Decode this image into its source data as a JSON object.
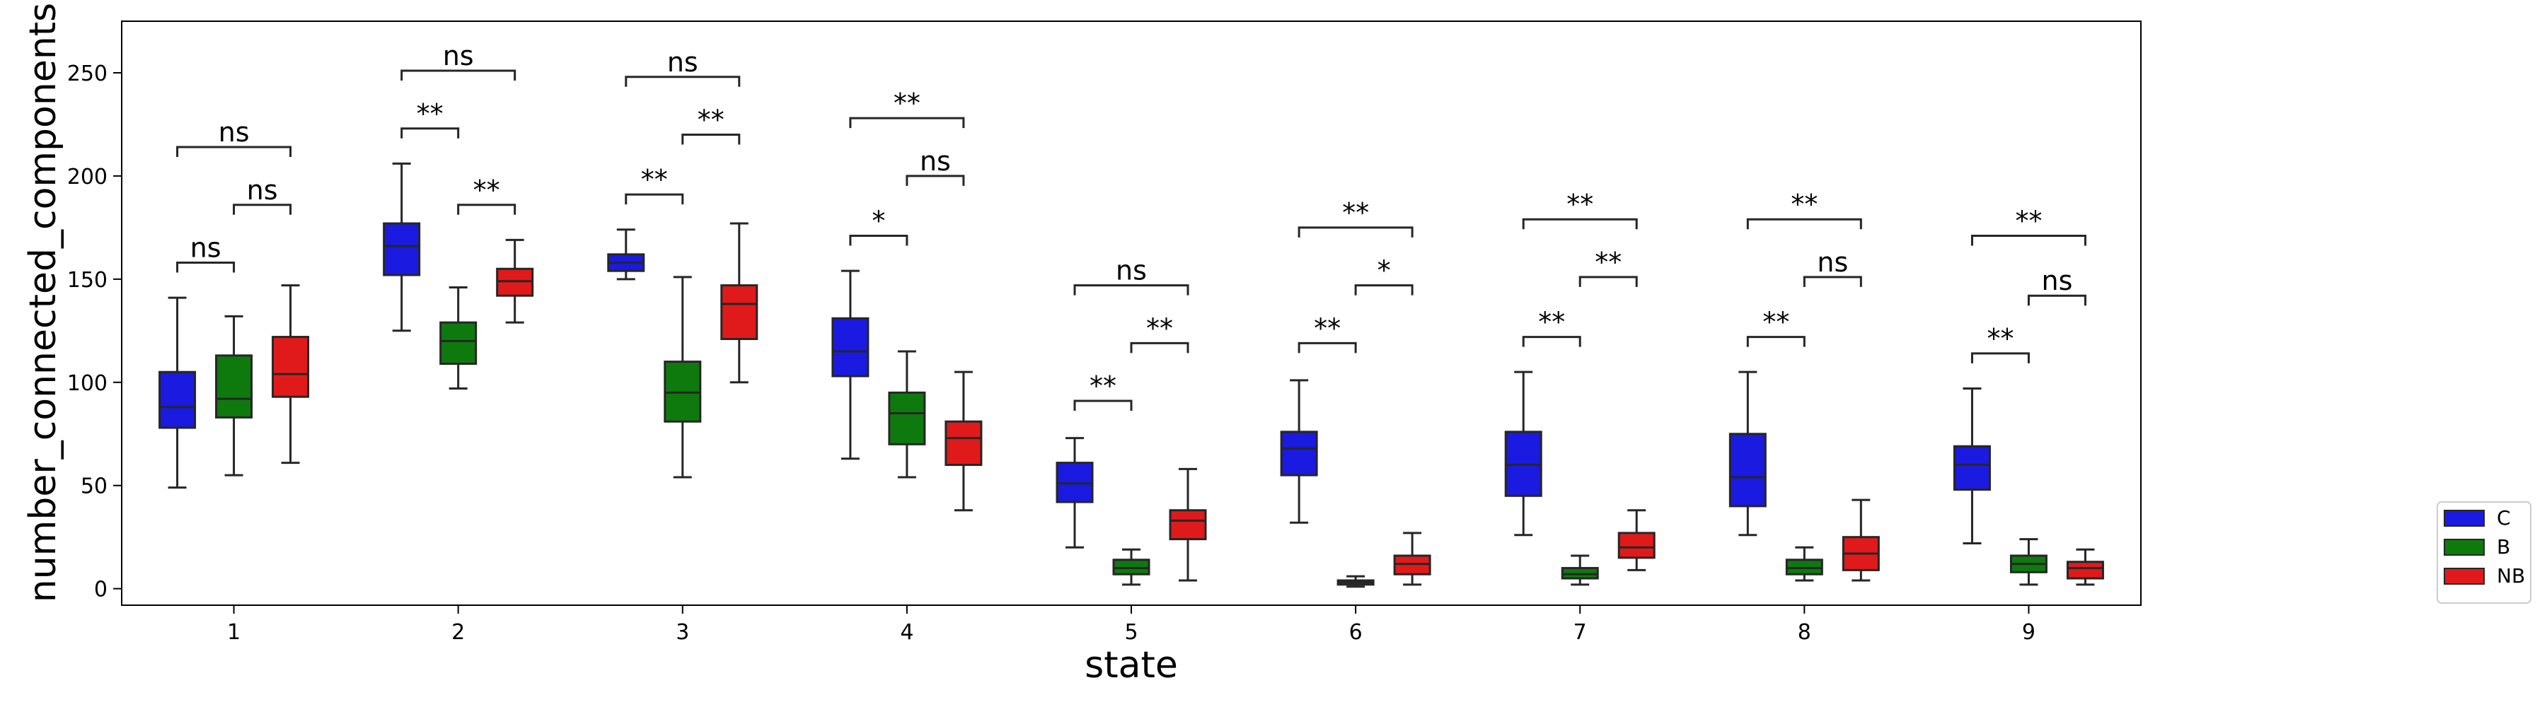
{
  "chart_data": {
    "type": "boxplot",
    "xlabel": "state",
    "ylabel": "number_connected_components",
    "ylim": [
      -8,
      275
    ],
    "yticks": [
      0,
      50,
      100,
      150,
      200,
      250
    ],
    "categories": [
      "1",
      "2",
      "3",
      "4",
      "5",
      "6",
      "7",
      "8",
      "9"
    ],
    "legend_placement": "outside-right-bottom",
    "grid": false,
    "series": [
      {
        "name": "C",
        "color": "#1a1ae0",
        "boxes": [
          {
            "whislo": 49,
            "q1": 78,
            "med": 88,
            "q3": 105,
            "whishi": 141
          },
          {
            "whislo": 125,
            "q1": 152,
            "med": 166,
            "q3": 177,
            "whishi": 206
          },
          {
            "whislo": 150,
            "q1": 154,
            "med": 158,
            "q3": 162,
            "whishi": 174
          },
          {
            "whislo": 63,
            "q1": 103,
            "med": 115,
            "q3": 131,
            "whishi": 154
          },
          {
            "whislo": 20,
            "q1": 42,
            "med": 51,
            "q3": 61,
            "whishi": 73
          },
          {
            "whislo": 32,
            "q1": 55,
            "med": 68,
            "q3": 76,
            "whishi": 101
          },
          {
            "whislo": 26,
            "q1": 45,
            "med": 60,
            "q3": 76,
            "whishi": 105
          },
          {
            "whislo": 26,
            "q1": 40,
            "med": 54,
            "q3": 75,
            "whishi": 105
          },
          {
            "whislo": 22,
            "q1": 48,
            "med": 60,
            "q3": 69,
            "whishi": 97
          }
        ]
      },
      {
        "name": "B",
        "color": "#0e7a0e",
        "boxes": [
          {
            "whislo": 55,
            "q1": 83,
            "med": 92,
            "q3": 113,
            "whishi": 132
          },
          {
            "whislo": 97,
            "q1": 109,
            "med": 120,
            "q3": 129,
            "whishi": 146
          },
          {
            "whislo": 54,
            "q1": 81,
            "med": 95,
            "q3": 110,
            "whishi": 151
          },
          {
            "whislo": 54,
            "q1": 70,
            "med": 85,
            "q3": 95,
            "whishi": 115
          },
          {
            "whislo": 2,
            "q1": 7,
            "med": 10,
            "q3": 14,
            "whishi": 19
          },
          {
            "whislo": 1,
            "q1": 2,
            "med": 3,
            "q3": 4,
            "whishi": 6
          },
          {
            "whislo": 2,
            "q1": 5,
            "med": 7,
            "q3": 10,
            "whishi": 16
          },
          {
            "whislo": 4,
            "q1": 7,
            "med": 10,
            "q3": 14,
            "whishi": 20
          },
          {
            "whislo": 2,
            "q1": 8,
            "med": 12,
            "q3": 16,
            "whishi": 24
          }
        ]
      },
      {
        "name": "NB",
        "color": "#e01a1a",
        "boxes": [
          {
            "whislo": 61,
            "q1": 93,
            "med": 104,
            "q3": 122,
            "whishi": 147
          },
          {
            "whislo": 129,
            "q1": 142,
            "med": 149,
            "q3": 155,
            "whishi": 169
          },
          {
            "whislo": 100,
            "q1": 121,
            "med": 138,
            "q3": 147,
            "whishi": 177
          },
          {
            "whislo": 38,
            "q1": 60,
            "med": 73,
            "q3": 81,
            "whishi": 105
          },
          {
            "whislo": 4,
            "q1": 24,
            "med": 33,
            "q3": 38,
            "whishi": 58
          },
          {
            "whislo": 2,
            "q1": 7,
            "med": 12,
            "q3": 16,
            "whishi": 27
          },
          {
            "whislo": 9,
            "q1": 15,
            "med": 20,
            "q3": 27,
            "whishi": 38
          },
          {
            "whislo": 4,
            "q1": 9,
            "med": 17,
            "q3": 25,
            "whishi": 43
          },
          {
            "whislo": 2,
            "q1": 5,
            "med": 10,
            "q3": 13,
            "whishi": 19
          }
        ]
      }
    ],
    "annotations": [
      {
        "state": "1",
        "pair": [
          "C",
          "B"
        ],
        "label": "ns",
        "level": 158
      },
      {
        "state": "1",
        "pair": [
          "B",
          "NB"
        ],
        "label": "ns",
        "level": 186
      },
      {
        "state": "1",
        "pair": [
          "C",
          "NB"
        ],
        "label": "ns",
        "level": 214
      },
      {
        "state": "2",
        "pair": [
          "C",
          "B"
        ],
        "label": "**",
        "level": 223
      },
      {
        "state": "2",
        "pair": [
          "B",
          "NB"
        ],
        "label": "**",
        "level": 186
      },
      {
        "state": "2",
        "pair": [
          "C",
          "NB"
        ],
        "label": "ns",
        "level": 251
      },
      {
        "state": "3",
        "pair": [
          "C",
          "B"
        ],
        "label": "**",
        "level": 191
      },
      {
        "state": "3",
        "pair": [
          "B",
          "NB"
        ],
        "label": "**",
        "level": 220
      },
      {
        "state": "3",
        "pair": [
          "C",
          "NB"
        ],
        "label": "ns",
        "level": 248
      },
      {
        "state": "4",
        "pair": [
          "C",
          "B"
        ],
        "label": "*",
        "level": 171
      },
      {
        "state": "4",
        "pair": [
          "B",
          "NB"
        ],
        "label": "ns",
        "level": 200
      },
      {
        "state": "4",
        "pair": [
          "C",
          "NB"
        ],
        "label": "**",
        "level": 228
      },
      {
        "state": "5",
        "pair": [
          "C",
          "B"
        ],
        "label": "**",
        "level": 91
      },
      {
        "state": "5",
        "pair": [
          "B",
          "NB"
        ],
        "label": "**",
        "level": 119
      },
      {
        "state": "5",
        "pair": [
          "C",
          "NB"
        ],
        "label": "ns",
        "level": 147
      },
      {
        "state": "6",
        "pair": [
          "C",
          "B"
        ],
        "label": "**",
        "level": 119
      },
      {
        "state": "6",
        "pair": [
          "B",
          "NB"
        ],
        "label": "*",
        "level": 147
      },
      {
        "state": "6",
        "pair": [
          "C",
          "NB"
        ],
        "label": "**",
        "level": 175
      },
      {
        "state": "7",
        "pair": [
          "C",
          "B"
        ],
        "label": "**",
        "level": 122
      },
      {
        "state": "7",
        "pair": [
          "B",
          "NB"
        ],
        "label": "**",
        "level": 151
      },
      {
        "state": "7",
        "pair": [
          "C",
          "NB"
        ],
        "label": "**",
        "level": 179
      },
      {
        "state": "8",
        "pair": [
          "C",
          "B"
        ],
        "label": "**",
        "level": 122
      },
      {
        "state": "8",
        "pair": [
          "B",
          "NB"
        ],
        "label": "ns",
        "level": 151
      },
      {
        "state": "8",
        "pair": [
          "C",
          "NB"
        ],
        "label": "**",
        "level": 179
      },
      {
        "state": "9",
        "pair": [
          "C",
          "B"
        ],
        "label": "**",
        "level": 114
      },
      {
        "state": "9",
        "pair": [
          "B",
          "NB"
        ],
        "label": "ns",
        "level": 142
      },
      {
        "state": "9",
        "pair": [
          "C",
          "NB"
        ],
        "label": "**",
        "level": 171
      }
    ]
  }
}
